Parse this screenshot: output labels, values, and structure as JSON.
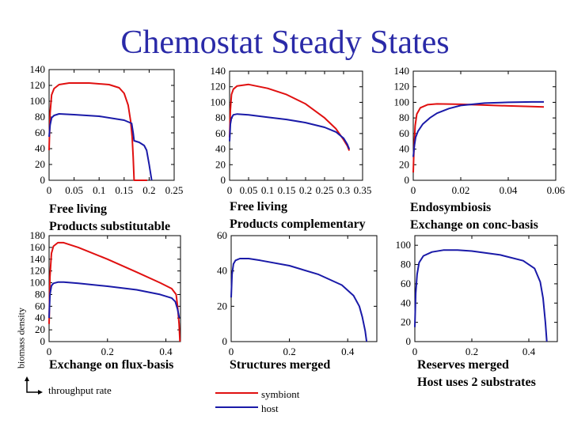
{
  "title": "Chemostat Steady States",
  "axes_labels": {
    "y": "biomass density",
    "x": "throughput rate"
  },
  "legend": [
    {
      "name": "symbiont",
      "color": "#e01010"
    },
    {
      "name": "host",
      "color": "#1a1aa8"
    }
  ],
  "captions": {
    "p1": [
      "Free living",
      "Products substitutable"
    ],
    "p2": [
      "Free living",
      "Products complementary"
    ],
    "p3": [
      "Endosymbiosis",
      "Exchange on conc-basis"
    ],
    "p4": [
      "Exchange on flux-basis"
    ],
    "p5": [
      "Structures merged"
    ],
    "p6": [
      "Reserves merged",
      "Host uses 2 substrates"
    ]
  },
  "chart_data": [
    {
      "id": "p1",
      "type": "line",
      "xlim": [
        0,
        0.25
      ],
      "ylim": [
        0,
        140
      ],
      "xticks": [
        "0",
        "0.05",
        "0.1",
        "0.15",
        "0.2",
        "0.25"
      ],
      "yticks": [
        "0",
        "20",
        "40",
        "60",
        "80",
        "100",
        "120",
        "140"
      ],
      "series": [
        {
          "name": "symbiont",
          "x": [
            0,
            0.002,
            0.005,
            0.01,
            0.02,
            0.04,
            0.08,
            0.12,
            0.14,
            0.15,
            0.158,
            0.163,
            0.166,
            0.168,
            0.17,
            0.195,
            0.196
          ],
          "y": [
            38,
            85,
            108,
            116,
            121,
            123,
            123,
            121,
            117,
            110,
            95,
            75,
            55,
            30,
            0,
            0,
            0
          ]
        },
        {
          "name": "host",
          "x": [
            0,
            0.002,
            0.005,
            0.01,
            0.02,
            0.05,
            0.1,
            0.15,
            0.165,
            0.168,
            0.17,
            0.18,
            0.19,
            0.195,
            0.2,
            0.205
          ],
          "y": [
            55,
            70,
            79,
            82,
            84,
            83,
            81,
            76,
            72,
            60,
            50,
            48,
            44,
            38,
            20,
            0
          ]
        }
      ]
    },
    {
      "id": "p2",
      "type": "line",
      "xlim": [
        0,
        0.35
      ],
      "ylim": [
        0,
        140
      ],
      "xticks": [
        "0",
        "0.05",
        "0.1",
        "0.15",
        "0.2",
        "0.25",
        "0.3",
        "0.35"
      ],
      "yticks": [
        "0",
        "20",
        "40",
        "60",
        "80",
        "100",
        "120",
        "140"
      ],
      "series": [
        {
          "name": "symbiont",
          "x": [
            0,
            0.002,
            0.005,
            0.01,
            0.02,
            0.05,
            0.1,
            0.15,
            0.2,
            0.25,
            0.28,
            0.3,
            0.31,
            0.315
          ],
          "y": [
            55,
            90,
            110,
            117,
            121,
            123,
            118,
            110,
            98,
            80,
            66,
            52,
            44,
            38
          ]
        },
        {
          "name": "host",
          "x": [
            0,
            0.002,
            0.005,
            0.01,
            0.02,
            0.05,
            0.1,
            0.15,
            0.2,
            0.25,
            0.28,
            0.3,
            0.31,
            0.315
          ],
          "y": [
            50,
            72,
            80,
            84,
            85,
            84,
            81,
            78,
            74,
            68,
            62,
            54,
            46,
            40
          ]
        }
      ]
    },
    {
      "id": "p3",
      "type": "line",
      "xlim": [
        0,
        0.06
      ],
      "ylim": [
        0,
        140
      ],
      "xticks": [
        "0",
        "0.02",
        "0.04",
        "0.06"
      ],
      "yticks": [
        "0",
        "20",
        "40",
        "60",
        "80",
        "100",
        "120",
        "140"
      ],
      "series": [
        {
          "name": "symbiont",
          "x": [
            0,
            0.0003,
            0.0008,
            0.0015,
            0.003,
            0.006,
            0.01,
            0.02,
            0.03,
            0.04,
            0.05,
            0.055
          ],
          "y": [
            10,
            40,
            70,
            85,
            93,
            97,
            98,
            97.5,
            96.5,
            95.5,
            94.5,
            94
          ]
        },
        {
          "name": "host",
          "x": [
            0,
            0.0005,
            0.001,
            0.002,
            0.004,
            0.007,
            0.01,
            0.015,
            0.02,
            0.03,
            0.04,
            0.05,
            0.055
          ],
          "y": [
            30,
            45,
            55,
            63,
            72,
            80,
            86,
            92,
            96,
            99,
            100,
            100.5,
            100.5
          ]
        }
      ]
    },
    {
      "id": "p4",
      "type": "line",
      "xlim": [
        0,
        0.45
      ],
      "ylim": [
        0,
        180
      ],
      "xticks": [
        "0",
        "0.2",
        "0.4"
      ],
      "yticks": [
        "0",
        "20",
        "40",
        "60",
        "80",
        "100",
        "120",
        "140",
        "160",
        "180"
      ],
      "series": [
        {
          "name": "symbiont",
          "x": [
            0,
            0.003,
            0.008,
            0.015,
            0.03,
            0.05,
            0.1,
            0.2,
            0.3,
            0.38,
            0.42,
            0.435,
            0.44,
            0.445,
            0.448
          ],
          "y": [
            30,
            110,
            150,
            162,
            168,
            168,
            160,
            140,
            118,
            100,
            90,
            80,
            60,
            30,
            0
          ]
        },
        {
          "name": "host",
          "x": [
            0,
            0.003,
            0.008,
            0.015,
            0.03,
            0.05,
            0.1,
            0.2,
            0.3,
            0.38,
            0.42,
            0.432,
            0.44,
            0.446
          ],
          "y": [
            40,
            80,
            95,
            99,
            101,
            101,
            99,
            94,
            88,
            80,
            74,
            68,
            55,
            40
          ]
        }
      ]
    },
    {
      "id": "p5",
      "type": "line",
      "xlim": [
        0,
        0.5
      ],
      "ylim": [
        0,
        60
      ],
      "xticks": [
        "0",
        "0.2",
        "0.4"
      ],
      "yticks": [
        "0",
        "20",
        "40",
        "60"
      ],
      "series": [
        {
          "name": "host",
          "x": [
            0,
            0.003,
            0.008,
            0.015,
            0.03,
            0.06,
            0.1,
            0.2,
            0.3,
            0.38,
            0.42,
            0.44,
            0.45,
            0.46,
            0.465
          ],
          "y": [
            25,
            38,
            44,
            46,
            47,
            47,
            46,
            43,
            38,
            32,
            26,
            20,
            14,
            6,
            0
          ]
        }
      ]
    },
    {
      "id": "p6",
      "type": "line",
      "xlim": [
        0,
        0.5
      ],
      "ylim": [
        0,
        110
      ],
      "xticks": [
        "0",
        "0.2",
        "0.4"
      ],
      "yticks": [
        "0",
        "20",
        "40",
        "60",
        "80",
        "100"
      ],
      "series": [
        {
          "name": "host",
          "x": [
            0,
            0.003,
            0.008,
            0.015,
            0.03,
            0.06,
            0.1,
            0.15,
            0.2,
            0.3,
            0.38,
            0.42,
            0.44,
            0.45,
            0.458,
            0.463
          ],
          "y": [
            15,
            50,
            70,
            82,
            89,
            93,
            95,
            95,
            94,
            90,
            84,
            76,
            62,
            45,
            20,
            0
          ]
        }
      ]
    }
  ]
}
